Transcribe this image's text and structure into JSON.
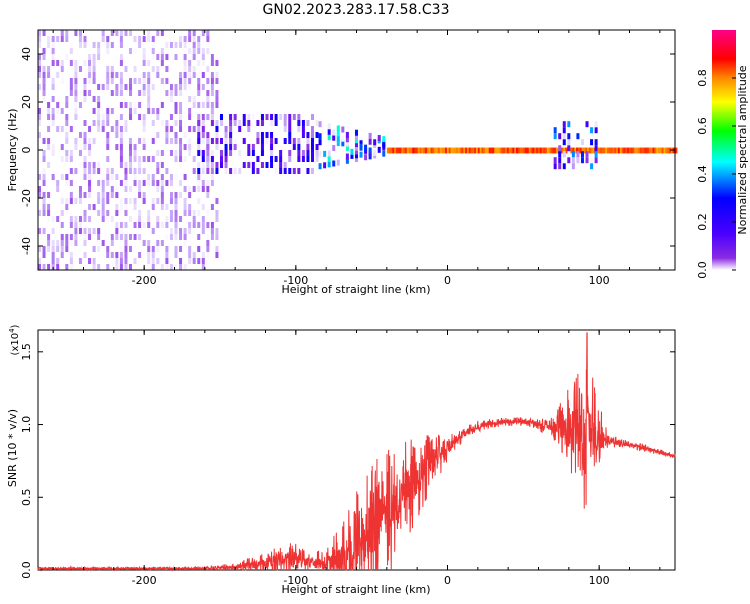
{
  "title": "GN02.2023.283.17.58.C33",
  "chart_data": [
    {
      "type": "heatmap",
      "title": "GN02.2023.283.17.58.C33",
      "xlabel": "Height of straight line (km)",
      "ylabel": "Frequency (Hz)",
      "xlim": [
        -270,
        150
      ],
      "ylim": [
        -50,
        50
      ],
      "xticks": [
        -200,
        -100,
        0,
        100
      ],
      "xtick_labels": [
        "-200",
        "-100",
        "0",
        "100"
      ],
      "yticks": [
        -40,
        -20,
        0,
        20,
        40
      ],
      "ytick_labels": [
        "-40",
        "-20",
        "0",
        "20",
        "40"
      ],
      "colorbar": {
        "label": "Normalized spectral amplitude",
        "range": [
          0.0,
          1.0
        ],
        "ticks": [
          0.0,
          0.2,
          0.4,
          0.6,
          0.8
        ],
        "tick_labels": [
          "0.0",
          "0.2",
          "0.4",
          "0.6",
          "0.8"
        ],
        "colormap": "rainbow (white→purple→blue→cyan→green→yellow→orange→red→magenta)"
      },
      "regions": [
        {
          "x_range": [
            -270,
            -150
          ],
          "freq_range": [
            -50,
            50
          ],
          "amplitude": 0.1,
          "description": "broadband noise"
        },
        {
          "x_range": [
            -165,
            -85
          ],
          "freq_range": [
            -10,
            15
          ],
          "amplitude": 0.3,
          "description": "signal onset blob"
        },
        {
          "x_range": [
            -85,
            -40
          ],
          "freq_range": [
            -8,
            10
          ],
          "amplitude": 0.5,
          "description": "chirp toward 0 Hz"
        },
        {
          "x_range": [
            -40,
            150
          ],
          "freq_range": [
            -1,
            1
          ],
          "amplitude": 0.9,
          "description": "narrow band at 0 Hz"
        },
        {
          "x_range": [
            70,
            100
          ],
          "freq_range": [
            -8,
            10
          ],
          "amplitude": 0.4,
          "description": "secondary burst"
        }
      ]
    },
    {
      "type": "line",
      "xlabel": "Height of straight line (km)",
      "ylabel": "SNR (10 * v/v)",
      "multiplier": "(x10^4)",
      "multiplier_base": "(x10",
      "multiplier_exp": "4",
      "xlim": [
        -270,
        150
      ],
      "ylim": [
        0,
        1.65
      ],
      "xticks": [
        -200,
        -100,
        0,
        100
      ],
      "xtick_labels": [
        "-200",
        "-100",
        "0",
        "100"
      ],
      "yticks": [
        0.0,
        0.5,
        1.0,
        1.5
      ],
      "ytick_labels": [
        "0.0",
        "0.5",
        "1.0",
        "1.5"
      ],
      "color": "#ee3333",
      "series": [
        {
          "envelope_x": [
            -270,
            -160,
            -140,
            -120,
            -100,
            -90,
            -80,
            -70,
            -60,
            -50,
            -40,
            -30,
            -20,
            -10,
            0,
            10,
            20,
            30,
            40,
            50,
            60,
            70,
            80,
            90,
            95,
            100,
            105,
            110,
            120,
            130,
            140,
            150
          ],
          "baseline": [
            0.01,
            0.01,
            0.02,
            0.05,
            0.08,
            0.05,
            0.04,
            0.08,
            0.15,
            0.28,
            0.38,
            0.5,
            0.62,
            0.75,
            0.85,
            0.93,
            0.99,
            1.01,
            1.02,
            1.02,
            1.0,
            0.98,
            0.96,
            0.95,
            0.93,
            0.92,
            0.9,
            0.88,
            0.86,
            0.84,
            0.81,
            0.78
          ],
          "noise_amp": [
            0.01,
            0.01,
            0.03,
            0.08,
            0.12,
            0.08,
            0.1,
            0.25,
            0.4,
            0.45,
            0.45,
            0.4,
            0.3,
            0.2,
            0.1,
            0.05,
            0.04,
            0.03,
            0.03,
            0.03,
            0.04,
            0.1,
            0.3,
            0.55,
            0.45,
            0.25,
            0.08,
            0.04,
            0.03,
            0.03,
            0.02,
            0.02
          ],
          "peak": {
            "x": 92,
            "y": 1.63
          }
        }
      ]
    }
  ]
}
